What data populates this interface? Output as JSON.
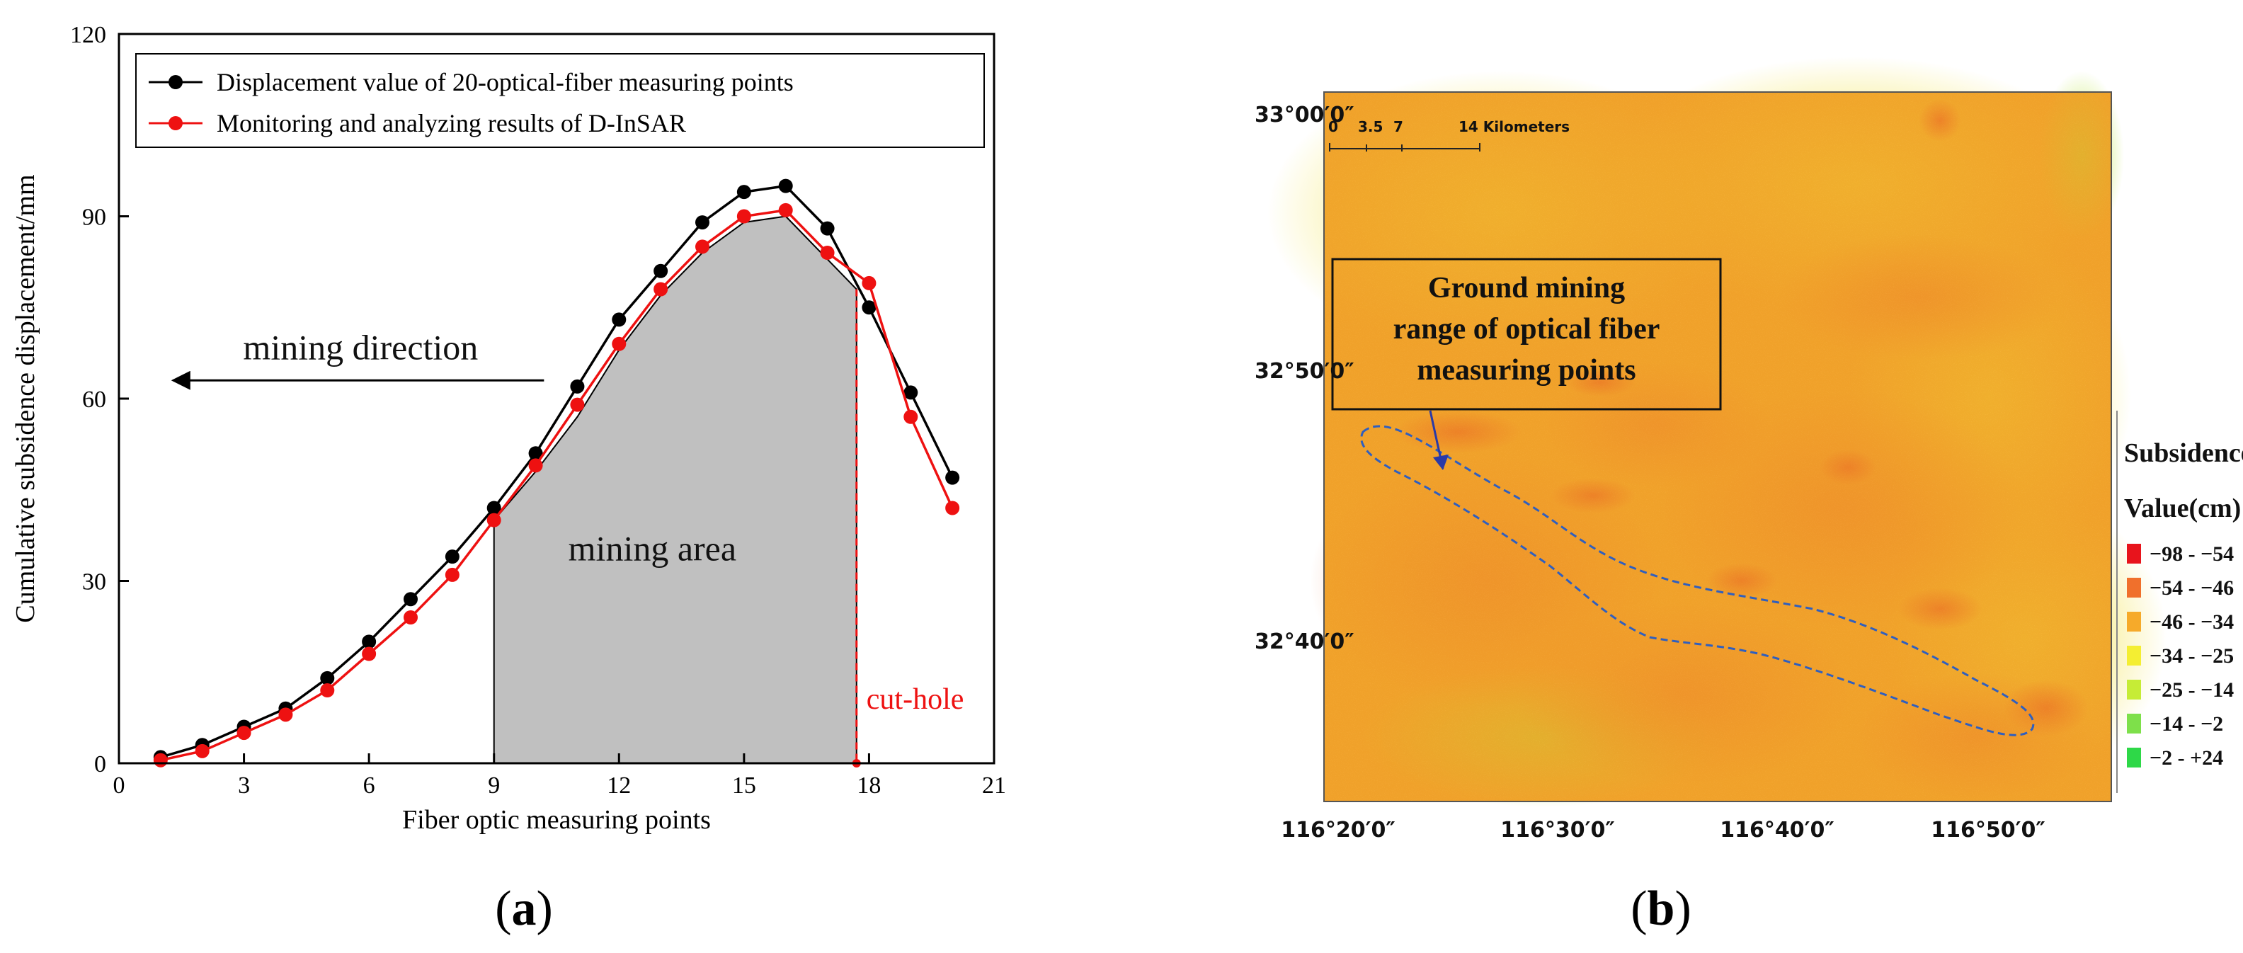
{
  "chart_data": [
    {
      "type": "line",
      "panel_label_open": "(",
      "panel_label_letter": "a",
      "panel_label_close": ")",
      "xlabel": "Fiber optic measuring points",
      "ylabel": "Cumulative subsidence displacement/mm",
      "xlim": [
        0,
        21
      ],
      "ylim": [
        0,
        120
      ],
      "xticks": [
        0,
        3,
        6,
        9,
        12,
        15,
        18,
        21
      ],
      "yticks": [
        0,
        30,
        60,
        90,
        120
      ],
      "grid": false,
      "legend_position": "top-left",
      "series": [
        {
          "name": "Displacement value of 20-optical-fiber measuring points",
          "color": "#000000",
          "x": [
            1,
            2,
            3,
            4,
            5,
            6,
            7,
            8,
            9,
            10,
            11,
            12,
            13,
            14,
            15,
            16,
            17,
            18,
            19,
            20
          ],
          "values": [
            1,
            3,
            6,
            9,
            14,
            20,
            27,
            34,
            42,
            51,
            62,
            73,
            81,
            89,
            94,
            95,
            88,
            75,
            61,
            47
          ]
        },
        {
          "name": "Monitoring and analyzing results of D-InSAR",
          "color": "#ee1111",
          "x": [
            1,
            2,
            3,
            4,
            5,
            6,
            7,
            8,
            9,
            10,
            11,
            12,
            13,
            14,
            15,
            16,
            17,
            18,
            19,
            20
          ],
          "values": [
            0.5,
            2,
            5,
            8,
            12,
            18,
            24,
            31,
            40,
            49,
            59,
            69,
            78,
            85,
            90,
            91,
            84,
            79,
            57,
            42
          ]
        }
      ],
      "mining_area": {
        "label": "mining area",
        "color": "#c0c0c0",
        "x": [
          9,
          10,
          11,
          12,
          13,
          14,
          15,
          16,
          17.7
        ],
        "upper": [
          40,
          48,
          57,
          68,
          77,
          84,
          89,
          90,
          78
        ]
      },
      "mining_direction": {
        "label": "mining direction",
        "arrow_from_x": 10.2,
        "arrow_to_x": 1.3,
        "y": 63
      },
      "cut_hole": {
        "label": "cut-hole",
        "x": 17.7,
        "color": "#ee1111"
      }
    },
    {
      "type": "map",
      "panel_label_open": "(",
      "panel_label_letter": "b",
      "panel_label_close": ")",
      "lat_labels": [
        "33°00′0″",
        "32°50′0″",
        "32°40′0″"
      ],
      "lon_labels": [
        "116°20′0″",
        "116°30′0″",
        "116°40′0″",
        "116°50′0″"
      ],
      "scale_bar_numbers": [
        "0",
        "3.5",
        "7"
      ],
      "scale_bar_label": "14 Kilometers",
      "annotation_lines": [
        "Ground mining",
        "range of optical fiber",
        "measuring points"
      ],
      "legend_title_1": "Subsidence",
      "legend_title_2": "Value(cm)",
      "legend": [
        {
          "label": "−98 - −54",
          "color": "#e8141c"
        },
        {
          "label": "−54 - −46",
          "color": "#f0702c"
        },
        {
          "label": "−46 - −34",
          "color": "#f6aa2a"
        },
        {
          "label": "−34 - −25",
          "color": "#f4ee32"
        },
        {
          "label": "−25 - −14",
          "color": "#c6ec36"
        },
        {
          "label": "−14 - −2",
          "color": "#7ee04a"
        },
        {
          "label": "−2 - +24",
          "color": "#2ed848"
        }
      ]
    }
  ]
}
